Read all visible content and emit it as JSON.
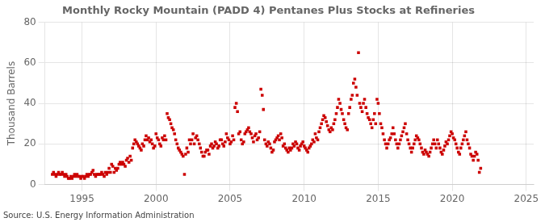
{
  "chart_data": {
    "type": "scatter",
    "title": "Monthly Rocky Mountain (PADD 4) Pentanes Plus Stocks at Refineries",
    "ylabel": "Thousand Barrels",
    "source": "Source: U.S. Energy Information Administration",
    "color": "#cc0000",
    "marker": "square",
    "grid": true,
    "xlim": [
      1992.5,
      2025.5
    ],
    "xticks": [
      1995,
      2000,
      2005,
      2010,
      2015,
      2020,
      2025
    ],
    "ylim": [
      0,
      80
    ],
    "yticks": [
      0,
      20,
      40,
      60,
      80
    ],
    "x": [
      1993.0,
      1993.08,
      1993.17,
      1993.25,
      1993.33,
      1993.42,
      1993.5,
      1993.58,
      1993.67,
      1993.75,
      1993.83,
      1993.92,
      1994.0,
      1994.08,
      1994.17,
      1994.25,
      1994.33,
      1994.42,
      1994.5,
      1994.58,
      1994.67,
      1994.75,
      1994.83,
      1994.92,
      1995.0,
      1995.08,
      1995.17,
      1995.25,
      1995.33,
      1995.42,
      1995.5,
      1995.58,
      1995.67,
      1995.75,
      1995.83,
      1995.92,
      1996.0,
      1996.08,
      1996.17,
      1996.25,
      1996.33,
      1996.42,
      1996.5,
      1996.58,
      1996.67,
      1996.75,
      1996.83,
      1996.92,
      1997.0,
      1997.08,
      1997.17,
      1997.25,
      1997.33,
      1997.42,
      1997.5,
      1997.58,
      1997.67,
      1997.75,
      1997.83,
      1997.92,
      1998.0,
      1998.08,
      1998.17,
      1998.25,
      1998.33,
      1998.42,
      1998.5,
      1998.58,
      1998.67,
      1998.75,
      1998.83,
      1998.92,
      1999.0,
      1999.08,
      1999.17,
      1999.25,
      1999.33,
      1999.42,
      1999.5,
      1999.58,
      1999.67,
      1999.75,
      1999.83,
      1999.92,
      2000.0,
      2000.08,
      2000.17,
      2000.25,
      2000.33,
      2000.42,
      2000.5,
      2000.58,
      2000.67,
      2000.75,
      2000.83,
      2000.92,
      2001.0,
      2001.08,
      2001.17,
      2001.25,
      2001.33,
      2001.42,
      2001.5,
      2001.58,
      2001.67,
      2001.75,
      2001.83,
      2001.92,
      2002.0,
      2002.08,
      2002.17,
      2002.25,
      2002.33,
      2002.42,
      2002.5,
      2002.58,
      2002.67,
      2002.75,
      2002.83,
      2002.92,
      2003.0,
      2003.08,
      2003.17,
      2003.25,
      2003.33,
      2003.42,
      2003.5,
      2003.58,
      2003.67,
      2003.75,
      2003.83,
      2003.92,
      2004.0,
      2004.08,
      2004.17,
      2004.25,
      2004.33,
      2004.42,
      2004.5,
      2004.58,
      2004.67,
      2004.75,
      2004.83,
      2004.92,
      2005.0,
      2005.08,
      2005.17,
      2005.25,
      2005.33,
      2005.42,
      2005.5,
      2005.58,
      2005.67,
      2005.75,
      2005.83,
      2005.92,
      2006.0,
      2006.08,
      2006.17,
      2006.25,
      2006.33,
      2006.42,
      2006.5,
      2006.58,
      2006.67,
      2006.75,
      2006.83,
      2006.92,
      2007.0,
      2007.08,
      2007.17,
      2007.25,
      2007.33,
      2007.42,
      2007.5,
      2007.58,
      2007.67,
      2007.75,
      2007.83,
      2007.92,
      2008.0,
      2008.08,
      2008.17,
      2008.25,
      2008.33,
      2008.42,
      2008.5,
      2008.58,
      2008.67,
      2008.75,
      2008.83,
      2008.92,
      2009.0,
      2009.08,
      2009.17,
      2009.25,
      2009.33,
      2009.42,
      2009.5,
      2009.58,
      2009.67,
      2009.75,
      2009.83,
      2009.92,
      2010.0,
      2010.08,
      2010.17,
      2010.25,
      2010.33,
      2010.42,
      2010.5,
      2010.58,
      2010.67,
      2010.75,
      2010.83,
      2010.92,
      2011.0,
      2011.08,
      2011.17,
      2011.25,
      2011.33,
      2011.42,
      2011.5,
      2011.58,
      2011.67,
      2011.75,
      2011.83,
      2011.92,
      2012.0,
      2012.08,
      2012.17,
      2012.25,
      2012.33,
      2012.42,
      2012.5,
      2012.58,
      2012.67,
      2012.75,
      2012.83,
      2012.92,
      2013.0,
      2013.08,
      2013.17,
      2013.25,
      2013.33,
      2013.42,
      2013.5,
      2013.58,
      2013.67,
      2013.75,
      2013.83,
      2013.92,
      2014.0,
      2014.08,
      2014.17,
      2014.25,
      2014.33,
      2014.42,
      2014.5,
      2014.58,
      2014.67,
      2014.75,
      2014.83,
      2014.92,
      2015.0,
      2015.08,
      2015.17,
      2015.25,
      2015.33,
      2015.42,
      2015.5,
      2015.58,
      2015.67,
      2015.75,
      2015.83,
      2015.92,
      2016.0,
      2016.08,
      2016.17,
      2016.25,
      2016.33,
      2016.42,
      2016.5,
      2016.58,
      2016.67,
      2016.75,
      2016.83,
      2016.92,
      2017.0,
      2017.08,
      2017.17,
      2017.25,
      2017.33,
      2017.42,
      2017.5,
      2017.58,
      2017.67,
      2017.75,
      2017.83,
      2017.92,
      2018.0,
      2018.08,
      2018.17,
      2018.25,
      2018.33,
      2018.42,
      2018.5,
      2018.58,
      2018.67,
      2018.75,
      2018.83,
      2018.92,
      2019.0,
      2019.08,
      2019.17,
      2019.25,
      2019.33,
      2019.42,
      2019.5,
      2019.58,
      2019.67,
      2019.75,
      2019.83,
      2019.92,
      2020.0,
      2020.08,
      2020.17,
      2020.25,
      2020.33,
      2020.42,
      2020.5,
      2020.58,
      2020.67,
      2020.75,
      2020.83,
      2020.92,
      2021.0,
      2021.08,
      2021.17,
      2021.25,
      2021.33,
      2021.42,
      2021.5,
      2021.58,
      2021.67,
      2021.75,
      2021.83,
      2021.92
    ],
    "values": [
      5,
      6,
      5,
      4,
      5,
      6,
      5,
      5,
      6,
      5,
      4,
      5,
      4,
      3,
      3,
      4,
      3,
      4,
      5,
      4,
      5,
      4,
      4,
      3,
      4,
      4,
      3,
      4,
      5,
      4,
      5,
      5,
      6,
      7,
      5,
      4,
      5,
      5,
      5,
      5,
      6,
      5,
      4,
      6,
      5,
      6,
      8,
      6,
      10,
      9,
      6,
      8,
      7,
      8,
      10,
      11,
      10,
      11,
      10,
      9,
      12,
      13,
      11,
      14,
      12,
      18,
      20,
      22,
      21,
      20,
      19,
      18,
      17,
      20,
      19,
      22,
      24,
      22,
      23,
      21,
      22,
      20,
      18,
      19,
      25,
      23,
      22,
      20,
      19,
      23,
      22,
      24,
      22,
      35,
      33,
      32,
      30,
      28,
      27,
      25,
      22,
      20,
      18,
      17,
      16,
      15,
      14,
      5,
      15,
      18,
      16,
      22,
      20,
      22,
      25,
      20,
      23,
      24,
      22,
      20,
      18,
      16,
      14,
      14,
      16,
      17,
      17,
      15,
      19,
      20,
      18,
      19,
      21,
      20,
      18,
      19,
      22,
      22,
      20,
      19,
      21,
      25,
      23,
      22,
      20,
      21,
      24,
      22,
      38,
      40,
      36,
      25,
      26,
      22,
      20,
      21,
      25,
      26,
      27,
      28,
      26,
      25,
      23,
      21,
      24,
      25,
      22,
      23,
      26,
      47,
      44,
      37,
      22,
      20,
      19,
      21,
      20,
      18,
      16,
      17,
      21,
      22,
      23,
      24,
      22,
      25,
      23,
      19,
      20,
      18,
      17,
      16,
      18,
      17,
      18,
      20,
      19,
      21,
      20,
      18,
      17,
      19,
      20,
      21,
      19,
      18,
      17,
      16,
      18,
      19,
      20,
      22,
      21,
      25,
      23,
      22,
      26,
      28,
      30,
      32,
      34,
      33,
      31,
      29,
      27,
      26,
      28,
      27,
      30,
      32,
      35,
      38,
      42,
      40,
      37,
      35,
      32,
      30,
      28,
      27,
      35,
      38,
      42,
      44,
      50,
      52,
      48,
      44,
      65,
      40,
      38,
      36,
      40,
      42,
      38,
      35,
      33,
      32,
      30,
      28,
      32,
      35,
      30,
      42,
      40,
      35,
      30,
      28,
      25,
      22,
      20,
      18,
      20,
      22,
      23,
      25,
      28,
      25,
      22,
      20,
      18,
      20,
      22,
      24,
      26,
      28,
      30,
      25,
      22,
      20,
      18,
      16,
      18,
      20,
      22,
      24,
      23,
      22,
      20,
      18,
      16,
      15,
      17,
      16,
      15,
      14,
      16,
      18,
      20,
      22,
      20,
      18,
      22,
      20,
      18,
      16,
      15,
      17,
      19,
      21,
      20,
      22,
      24,
      26,
      25,
      23,
      22,
      20,
      18,
      16,
      15,
      18,
      20,
      22,
      24,
      26,
      22,
      20,
      18,
      15,
      14,
      12,
      14,
      16,
      15,
      12,
      6,
      8
    ]
  }
}
